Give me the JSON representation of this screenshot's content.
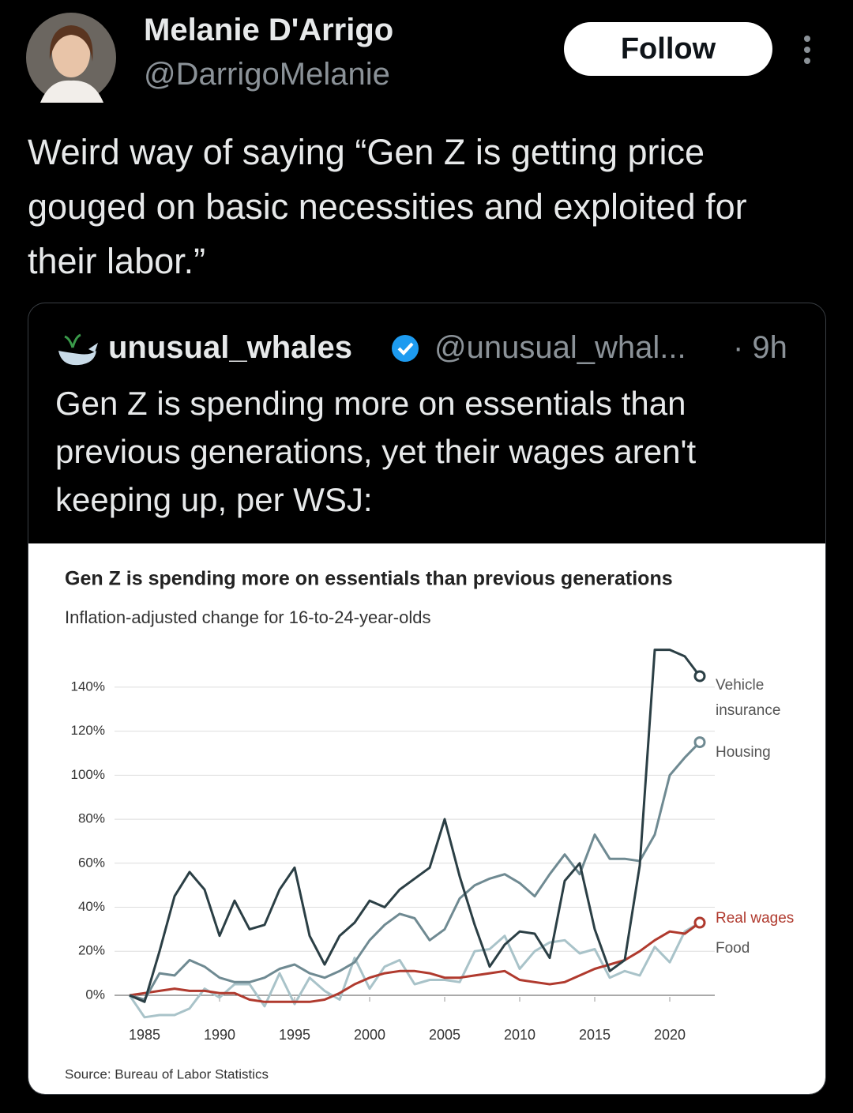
{
  "tweet": {
    "author_name": "Melanie D'Arrigo",
    "handle": "@DarrigoMelanie",
    "follow_label": "Follow",
    "text": "Weird way of saying “Gen Z is getting price gouged on basic necessities and exploited for their labor.”"
  },
  "quoted": {
    "author_name": "unusual_whales",
    "handle": "@unusual_whal...",
    "time": "· 9h",
    "text": "Gen Z is spending more on essentials than previous generations, yet their wages aren't keeping up, per WSJ:"
  },
  "chart_data": {
    "type": "line",
    "title": "Gen Z is spending more on essentials than previous generations",
    "subtitle": "Inflation-adjusted change for 16-to-24-year-olds",
    "source": "Source: Bureau of Labor Statistics",
    "x": [
      1984,
      1985,
      1986,
      1987,
      1988,
      1989,
      1990,
      1991,
      1992,
      1993,
      1994,
      1995,
      1996,
      1997,
      1998,
      1999,
      2000,
      2001,
      2002,
      2003,
      2004,
      2005,
      2006,
      2007,
      2008,
      2009,
      2010,
      2011,
      2012,
      2013,
      2014,
      2015,
      2016,
      2017,
      2018,
      2019,
      2020,
      2021,
      2022
    ],
    "series": [
      {
        "name": "Vehicle insurance",
        "color": "#2b3f45",
        "values": [
          0,
          -3,
          20,
          45,
          56,
          48,
          27,
          43,
          30,
          32,
          48,
          58,
          27,
          14,
          27,
          33,
          43,
          40,
          48,
          53,
          58,
          80,
          54,
          32,
          13,
          23,
          29,
          28,
          17,
          52,
          60,
          30,
          11,
          16,
          59,
          157,
          157,
          154,
          145
        ]
      },
      {
        "name": "Housing",
        "color": "#6f8a92",
        "values": [
          0,
          -2,
          10,
          9,
          16,
          13,
          8,
          6,
          6,
          8,
          12,
          14,
          10,
          8,
          11,
          15,
          25,
          32,
          37,
          35,
          25,
          30,
          44,
          50,
          53,
          55,
          51,
          45,
          55,
          64,
          55,
          73,
          62,
          62,
          61,
          73,
          100,
          108,
          115
        ]
      },
      {
        "name": "Real wages",
        "color": "#b03a2e",
        "values": [
          0,
          1,
          2,
          3,
          2,
          2,
          1,
          1,
          -2,
          -3,
          -3,
          -3,
          -3,
          -2,
          1,
          5,
          8,
          10,
          11,
          11,
          10,
          8,
          8,
          9,
          10,
          11,
          7,
          6,
          5,
          6,
          9,
          12,
          14,
          16,
          20,
          25,
          29,
          28,
          33
        ]
      },
      {
        "name": "Food",
        "color": "#a9c3c9",
        "values": [
          0,
          -10,
          -9,
          -9,
          -6,
          3,
          -1,
          5,
          5,
          -5,
          10,
          -4,
          8,
          2,
          -2,
          17,
          3,
          13,
          16,
          5,
          7,
          7,
          6,
          20,
          21,
          27,
          12,
          20,
          24,
          25,
          19,
          21,
          8,
          11,
          9,
          22,
          15,
          29,
          33
        ]
      }
    ],
    "xlim": [
      1983,
      2023
    ],
    "xticks": [
      1985,
      1990,
      1995,
      2000,
      2005,
      2010,
      2015,
      2020
    ],
    "ylim": [
      -12,
      160
    ],
    "yticks": [
      {
        "value": 0,
        "label": "0%"
      },
      {
        "value": 20,
        "label": "20%"
      },
      {
        "value": 40,
        "label": "40%"
      },
      {
        "value": 60,
        "label": "60%"
      },
      {
        "value": 80,
        "label": "80%"
      },
      {
        "value": 100,
        "label": "100%"
      },
      {
        "value": 120,
        "label": "120%"
      },
      {
        "value": 140,
        "label": "140%"
      }
    ],
    "grid": true
  }
}
